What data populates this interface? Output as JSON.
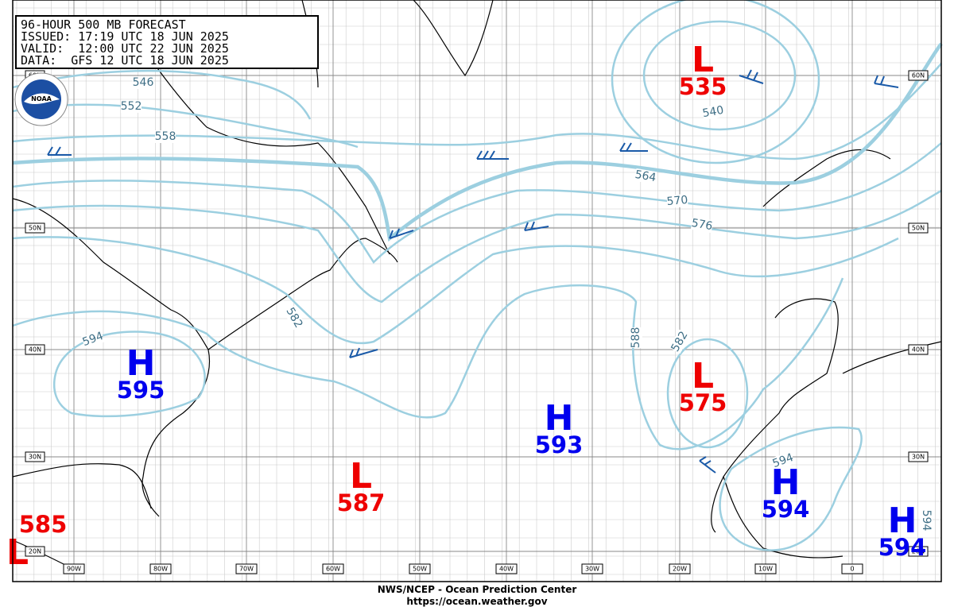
{
  "header": {
    "lines": [
      "96-HOUR 500 MB FORECAST",
      "ISSUED: 17:19 UTC 18 JUN 2025",
      "VALID:  12:00 UTC 22 JUN 2025",
      "DATA:  GFS 12 UTC 18 JUN 2025"
    ]
  },
  "logo": "NOAA",
  "centers": [
    {
      "type": "L",
      "value": "535"
    },
    {
      "type": "H",
      "value": "595"
    },
    {
      "type": "L",
      "value": "587"
    },
    {
      "type": "H",
      "value": "593"
    },
    {
      "type": "L",
      "value": "575"
    },
    {
      "type": "H",
      "value": "594"
    },
    {
      "type": "H",
      "value": "594"
    },
    {
      "type": "L",
      "value": "585"
    }
  ],
  "contour_labels": [
    "546",
    "552",
    "558",
    "540",
    "564",
    "570",
    "576",
    "582",
    "588",
    "582",
    "594",
    "594",
    "594"
  ],
  "lat_labels": [
    "60N",
    "50N",
    "40N",
    "30N",
    "20N"
  ],
  "lon_labels": [
    "90W",
    "80W",
    "70W",
    "60W",
    "50W",
    "40W",
    "30W",
    "20W",
    "10W",
    "0"
  ],
  "footer": {
    "line1": "NWS/NCEP - Ocean Prediction Center",
    "line2": "https://ocean.weather.gov"
  }
}
